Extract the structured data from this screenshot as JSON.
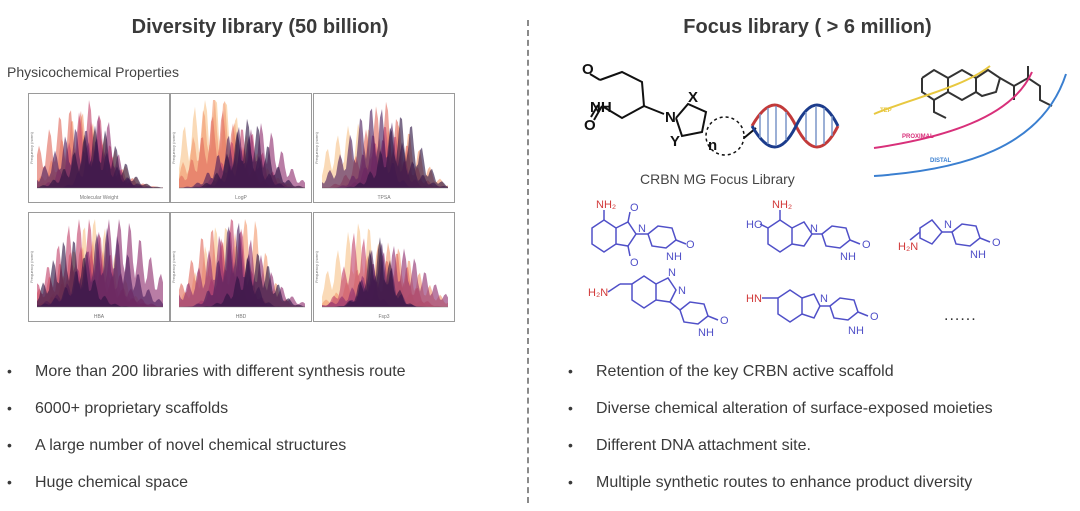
{
  "left": {
    "title": "Diversity library (50 billion)",
    "subtitle": "Physicochemical Properties",
    "bullets": [
      "More than 200 libraries with different synthesis route",
      "6000+ proprietary scaffolds",
      "A large number of novel chemical structures",
      "Huge chemical space"
    ],
    "plots": [
      {
        "xlabel": "Molecular Weight",
        "ylabel": "Frequency (norm)"
      },
      {
        "xlabel": "LogP",
        "ylabel": "Frequency (norm)"
      },
      {
        "xlabel": "TPSA",
        "ylabel": "Frequency (norm)"
      },
      {
        "xlabel": "HBA",
        "ylabel": "Frequency (norm)"
      },
      {
        "xlabel": "HBD",
        "ylabel": "Frequency (norm)"
      },
      {
        "xlabel": "Fsp3",
        "ylabel": "Frequency (norm)"
      }
    ],
    "palette": [
      "#f7c48a",
      "#f29a6e",
      "#e06a5e",
      "#c2426b",
      "#8e2d6e",
      "#4a1d5c",
      "#2a1240"
    ]
  },
  "right": {
    "title": "Focus library ( > 6 million)",
    "caption": "CRBN MG Focus Library",
    "scaffold_labels": {
      "nh": "NH",
      "x": "X",
      "y": "Y",
      "n": "n",
      "o": "O"
    },
    "layers": [
      "TEP",
      "PROXIMAL",
      "DISTAL"
    ],
    "layer_colors": [
      "#e8c840",
      "#d8307a",
      "#3a7fd0"
    ],
    "molecule_labels": {
      "nh2": "NH₂",
      "h2n": "H₂N",
      "ho": "HO",
      "hn": "HN",
      "o": "O",
      "nh": "NH",
      "n": "N"
    },
    "ellipsis": "......",
    "bullets": [
      "Retention of the key CRBN active scaffold",
      "Diverse chemical alteration of surface-exposed moieties",
      "Different DNA attachment site.",
      " Multiple synthetic routes to enhance product diversity"
    ]
  },
  "bullet_symbol": "•"
}
